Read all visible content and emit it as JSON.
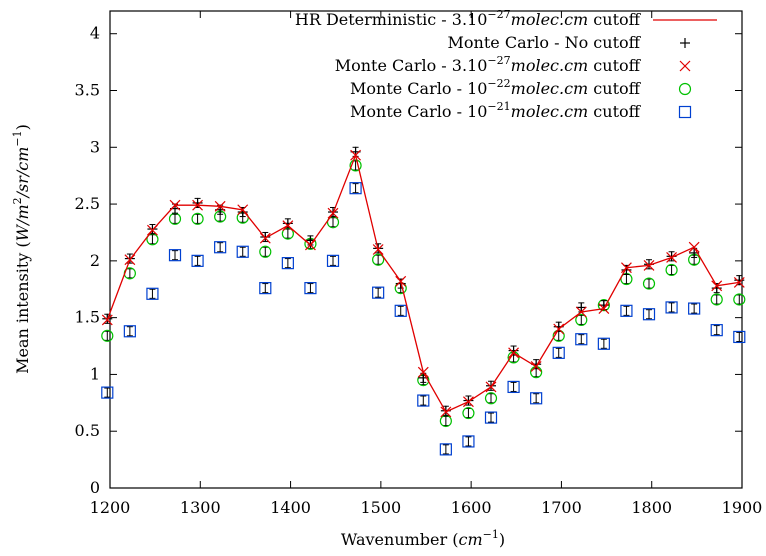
{
  "chart_data": {
    "type": "line",
    "xlabel_main": "Wavenumber (",
    "xlabel_unit": "cm",
    "xlabel_exp": "−1",
    "xlabel_end": ")",
    "ylabel_main": "Mean intensity (",
    "ylabel_unit": "W/m",
    "ylabel_exp1": "2",
    "ylabel_mid": "/sr/cm",
    "ylabel_exp2": "−1",
    "ylabel_end": ")",
    "xlim": [
      1200,
      1900
    ],
    "ylim": [
      0,
      4.2
    ],
    "xticks": [
      1200,
      1300,
      1400,
      1500,
      1600,
      1700,
      1800,
      1900
    ],
    "yticks": [
      0,
      0.5,
      1,
      1.5,
      2,
      2.5,
      3,
      3.5,
      4
    ],
    "x": [
      1197,
      1222,
      1247,
      1272,
      1297,
      1322,
      1347,
      1372,
      1397,
      1422,
      1447,
      1472,
      1497,
      1522,
      1547,
      1572,
      1597,
      1622,
      1647,
      1672,
      1697,
      1722,
      1747,
      1772,
      1797,
      1822,
      1847,
      1872,
      1897
    ],
    "series": [
      {
        "legend_prefix": "HR Deterministic - 3.10",
        "legend_exp": "−27",
        "legend_unit": "molec.cm",
        "legend_suffix": " cutoff",
        "marker": "line",
        "color": "#e00000",
        "values": [
          1.48,
          2.01,
          2.27,
          2.49,
          2.49,
          2.48,
          2.45,
          2.2,
          2.31,
          2.14,
          2.42,
          2.93,
          2.1,
          1.82,
          1.02,
          0.67,
          0.76,
          0.89,
          1.19,
          1.07,
          1.4,
          1.55,
          1.58,
          1.94,
          1.96,
          2.03,
          2.12,
          1.78,
          1.81
        ],
        "errors": []
      },
      {
        "legend_prefix": "Monte Carlo - No cutoff",
        "legend_exp": "",
        "legend_unit": "",
        "legend_suffix": "",
        "marker": "plus",
        "color": "#000000",
        "values": [
          1.49,
          2.02,
          2.28,
          2.46,
          2.51,
          2.45,
          2.43,
          2.21,
          2.33,
          2.18,
          2.43,
          2.96,
          2.11,
          1.8,
          0.97,
          0.68,
          0.77,
          0.9,
          1.21,
          1.09,
          1.42,
          1.59,
          1.61,
          1.92,
          1.97,
          2.04,
          2.07,
          1.76,
          1.83
        ],
        "errors": [
          0.04,
          0.04,
          0.04,
          0.04,
          0.04,
          0.04,
          0.04,
          0.04,
          0.04,
          0.04,
          0.04,
          0.04,
          0.04,
          0.04,
          0.04,
          0.04,
          0.04,
          0.04,
          0.04,
          0.04,
          0.04,
          0.04,
          0.04,
          0.04,
          0.04,
          0.04,
          0.04,
          0.04,
          0.04
        ]
      },
      {
        "legend_prefix": "Monte Carlo - 3.10",
        "legend_exp": "−27",
        "legend_unit": "molec.cm",
        "legend_suffix": " cutoff",
        "marker": "cross",
        "color": "#e00000",
        "values": [
          1.48,
          2.01,
          2.27,
          2.49,
          2.49,
          2.48,
          2.45,
          2.2,
          2.31,
          2.14,
          2.42,
          2.93,
          2.1,
          1.82,
          1.02,
          0.67,
          0.76,
          0.89,
          1.19,
          1.07,
          1.4,
          1.55,
          1.58,
          1.94,
          1.96,
          2.03,
          2.12,
          1.78,
          1.81
        ],
        "errors": []
      },
      {
        "legend_prefix": "Monte Carlo - 10",
        "legend_exp": "−22",
        "legend_unit": "molec.cm",
        "legend_suffix": " cutoff",
        "marker": "circle",
        "color": "#00c000",
        "values": [
          1.34,
          1.89,
          2.19,
          2.37,
          2.37,
          2.39,
          2.38,
          2.08,
          2.24,
          2.15,
          2.34,
          2.84,
          2.01,
          1.76,
          0.95,
          0.59,
          0.66,
          0.79,
          1.15,
          1.02,
          1.34,
          1.48,
          1.61,
          1.84,
          1.8,
          1.92,
          2.01,
          1.66,
          1.66
        ],
        "errors": [
          0.04,
          0.04,
          0.04,
          0.04,
          0.04,
          0.04,
          0.04,
          0.04,
          0.04,
          0.04,
          0.04,
          0.04,
          0.04,
          0.04,
          0.04,
          0.04,
          0.04,
          0.04,
          0.04,
          0.04,
          0.04,
          0.04,
          0.04,
          0.04,
          0.04,
          0.04,
          0.04,
          0.04,
          0.04
        ]
      },
      {
        "legend_prefix": "Monte Carlo - 10",
        "legend_exp": "−21",
        "legend_unit": "molec.cm",
        "legend_suffix": " cutoff",
        "marker": "square",
        "color": "#0040d0",
        "values": [
          0.84,
          1.38,
          1.71,
          2.05,
          2.0,
          2.12,
          2.08,
          1.76,
          1.98,
          1.76,
          2.0,
          2.64,
          1.72,
          1.56,
          0.77,
          0.34,
          0.41,
          0.62,
          0.89,
          0.79,
          1.19,
          1.31,
          1.27,
          1.56,
          1.53,
          1.59,
          1.58,
          1.39,
          1.33
        ],
        "errors": [
          0.04,
          0.04,
          0.04,
          0.04,
          0.04,
          0.04,
          0.04,
          0.04,
          0.04,
          0.04,
          0.04,
          0.04,
          0.04,
          0.04,
          0.04,
          0.04,
          0.04,
          0.04,
          0.04,
          0.04,
          0.04,
          0.04,
          0.04,
          0.04,
          0.04,
          0.04,
          0.04,
          0.04,
          0.04
        ]
      }
    ]
  }
}
